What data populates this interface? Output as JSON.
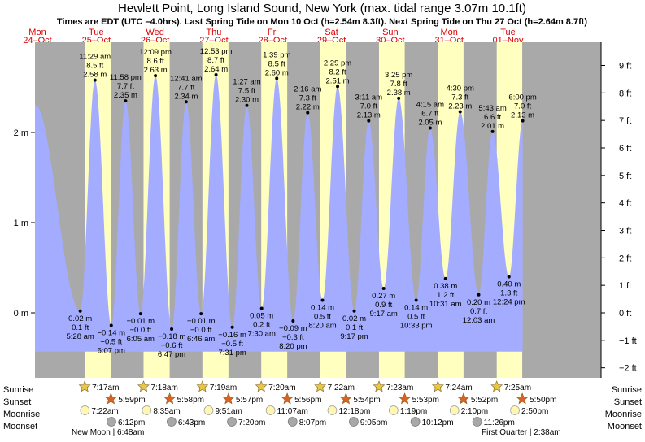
{
  "title": "Hewlett Point, Long Island Sound, New York (max. tidal range 3.07m 10.1ft)",
  "subtitle": "Times are EDT (UTC –4.0hrs). Last Spring Tide on Mon 10 Oct (h=2.54m 8.3ft). Next Spring Tide on Thu 27 Oct (h=2.64m 8.7ft)",
  "colors": {
    "night": "#a9a9a9",
    "day": "#ffffc0",
    "tide": "#a3acff",
    "date_red": "#e00000",
    "sun_star": "#e8c840",
    "sunset_star": "#e06020",
    "moonrise": "#fff6b0",
    "moonset": "#a8a8a8"
  },
  "days": [
    {
      "dow": "Mon",
      "date": "24–Oct"
    },
    {
      "dow": "Tue",
      "date": "25–Oct"
    },
    {
      "dow": "Wed",
      "date": "26–Oct"
    },
    {
      "dow": "Thu",
      "date": "27–Oct"
    },
    {
      "dow": "Fri",
      "date": "28–Oct"
    },
    {
      "dow": "Sat",
      "date": "29–Oct"
    },
    {
      "dow": "Sun",
      "date": "30–Oct"
    },
    {
      "dow": "Mon",
      "date": "31–Oct"
    },
    {
      "dow": "Tue",
      "date": "01–Nov"
    }
  ],
  "chart_data": {
    "type": "area",
    "time_unit": "hours from Mon 24 Oct 00:00 EDT",
    "xlim": [
      11,
      242
    ],
    "ylim_m": [
      -0.7,
      3.0
    ],
    "y_left_ticks": [
      {
        "v": 0,
        "label": "0 m"
      },
      {
        "v": 1,
        "label": "1 m"
      },
      {
        "v": 2,
        "label": "2 m"
      }
    ],
    "y_right_ticks": [
      {
        "ft": -2,
        "label": "−2 ft"
      },
      {
        "ft": -1,
        "label": "−1 ft"
      },
      {
        "ft": 0,
        "label": "0 ft"
      },
      {
        "ft": 1,
        "label": "1 ft"
      },
      {
        "ft": 2,
        "label": "2 ft"
      },
      {
        "ft": 3,
        "label": "3 ft"
      },
      {
        "ft": 4,
        "label": "4 ft"
      },
      {
        "ft": 5,
        "label": "5 ft"
      },
      {
        "ft": 6,
        "label": "6 ft"
      },
      {
        "ft": 7,
        "label": "7 ft"
      },
      {
        "ft": 8,
        "label": "8 ft"
      },
      {
        "ft": 9,
        "label": "9 ft"
      }
    ],
    "start_tide": {
      "t": 11.0,
      "h": 2.31
    },
    "extremes": [
      {
        "t": 29.47,
        "h": 0.02,
        "type": "low",
        "m": "0.02 m",
        "ft": "0.1 ft",
        "time": "5:28 am"
      },
      {
        "t": 35.48,
        "h": 2.58,
        "type": "high",
        "m": "2.58 m",
        "ft": "8.5 ft",
        "time": "11:29 am"
      },
      {
        "t": 42.12,
        "h": -0.14,
        "type": "low",
        "m": "−0.14 m",
        "ft": "−0.5 ft",
        "time": "6:07 pm"
      },
      {
        "t": 47.97,
        "h": 2.35,
        "type": "high",
        "m": "2.35 m",
        "ft": "7.7 ft",
        "time": "11:58 pm"
      },
      {
        "t": 54.08,
        "h": -0.01,
        "type": "low",
        "m": "−0.01 m",
        "ft": "−0.0 ft",
        "time": "6:05 am"
      },
      {
        "t": 60.15,
        "h": 2.63,
        "type": "high",
        "m": "2.63 m",
        "ft": "8.6 ft",
        "time": "12:09 pm"
      },
      {
        "t": 66.78,
        "h": -0.18,
        "type": "low",
        "m": "−0.18 m",
        "ft": "−0.6 ft",
        "time": "6:47 pm"
      },
      {
        "t": 72.68,
        "h": 2.34,
        "type": "high",
        "m": "2.34 m",
        "ft": "7.7 ft",
        "time": "12:41 am"
      },
      {
        "t": 78.77,
        "h": -0.01,
        "type": "low",
        "m": "−0.01 m",
        "ft": "−0.0 ft",
        "time": "6:46 am"
      },
      {
        "t": 84.88,
        "h": 2.64,
        "type": "high",
        "m": "2.64 m",
        "ft": "8.7 ft",
        "time": "12:53 pm"
      },
      {
        "t": 91.52,
        "h": -0.16,
        "type": "low",
        "m": "−0.16 m",
        "ft": "−0.5 ft",
        "time": "7:31 pm"
      },
      {
        "t": 97.45,
        "h": 2.3,
        "type": "high",
        "m": "2.30 m",
        "ft": "7.5 ft",
        "time": "1:27 am"
      },
      {
        "t": 103.5,
        "h": 0.05,
        "type": "low",
        "m": "0.05 m",
        "ft": "0.2 ft",
        "time": "7:30 am"
      },
      {
        "t": 109.65,
        "h": 2.6,
        "type": "high",
        "m": "2.60 m",
        "ft": "8.5 ft",
        "time": "1:39 pm"
      },
      {
        "t": 116.33,
        "h": -0.09,
        "type": "low",
        "m": "−0.09 m",
        "ft": "−0.3 ft",
        "time": "8:20 pm"
      },
      {
        "t": 122.27,
        "h": 2.22,
        "type": "high",
        "m": "2.22 m",
        "ft": "7.3 ft",
        "time": "2:16 am"
      },
      {
        "t": 128.33,
        "h": 0.14,
        "type": "low",
        "m": "0.14 m",
        "ft": "0.5 ft",
        "time": "8:20 am"
      },
      {
        "t": 134.48,
        "h": 2.51,
        "type": "high",
        "m": "2.51 m",
        "ft": "8.2 ft",
        "time": "2:29 pm"
      },
      {
        "t": 141.28,
        "h": 0.02,
        "type": "low",
        "m": "0.02 m",
        "ft": "0.1 ft",
        "time": "9:17 pm"
      },
      {
        "t": 147.18,
        "h": 2.13,
        "type": "high",
        "m": "2.13 m",
        "ft": "7.0 ft",
        "time": "3:11 am"
      },
      {
        "t": 153.28,
        "h": 0.27,
        "type": "low",
        "m": "0.27 m",
        "ft": "0.9 ft",
        "time": "9:17 am"
      },
      {
        "t": 159.42,
        "h": 2.38,
        "type": "high",
        "m": "2.38 m",
        "ft": "7.8 ft",
        "time": "3:25 pm"
      },
      {
        "t": 166.55,
        "h": 0.14,
        "type": "low",
        "m": "0.14 m",
        "ft": "0.5 ft",
        "time": "10:33 pm"
      },
      {
        "t": 172.25,
        "h": 2.05,
        "type": "high",
        "m": "2.05 m",
        "ft": "6.7 ft",
        "time": "4:15 am"
      },
      {
        "t": 178.52,
        "h": 0.38,
        "type": "low",
        "m": "0.38 m",
        "ft": "1.2 ft",
        "time": "10:31 am"
      },
      {
        "t": 184.5,
        "h": 2.23,
        "type": "high",
        "m": "2.23 m",
        "ft": "7.3 ft",
        "time": "4:30 pm"
      },
      {
        "t": 192.05,
        "h": 0.2,
        "type": "low",
        "m": "0.20 m",
        "ft": "0.7 ft",
        "time": "12:03 am"
      },
      {
        "t": 197.72,
        "h": 2.01,
        "type": "high",
        "m": "2.01 m",
        "ft": "6.6 ft",
        "time": "5:43 am"
      },
      {
        "t": 204.4,
        "h": 0.4,
        "type": "low",
        "m": "0.40 m",
        "ft": "1.3 ft",
        "time": "12:24 pm"
      },
      {
        "t": 210.0,
        "h": 2.13,
        "type": "high",
        "m": "2.13 m",
        "ft": "7.0 ft",
        "time": "6:00 pm"
      }
    ],
    "end_tide": {
      "t": 210.0,
      "h": 2.13
    },
    "daylight": [
      {
        "rise": 31.28,
        "set": 41.98
      },
      {
        "rise": 55.3,
        "set": 65.97
      },
      {
        "rise": 79.32,
        "set": 89.95
      },
      {
        "rise": 103.33,
        "set": 113.93
      },
      {
        "rise": 127.37,
        "set": 137.9
      },
      {
        "rise": 151.38,
        "set": 161.88
      },
      {
        "rise": 175.4,
        "set": 185.87
      },
      {
        "rise": 199.42,
        "set": 209.83
      }
    ]
  },
  "legend_labels": {
    "sunrise": "Sunrise",
    "sunset": "Sunset",
    "moonrise": "Moonrise",
    "moonset": "Moonset"
  },
  "sun_moon": {
    "sunrise": [
      {
        "t": 31.28,
        "label": "7:17am"
      },
      {
        "t": 55.3,
        "label": "7:18am"
      },
      {
        "t": 79.32,
        "label": "7:19am"
      },
      {
        "t": 103.33,
        "label": "7:20am"
      },
      {
        "t": 127.37,
        "label": "7:22am"
      },
      {
        "t": 151.38,
        "label": "7:23am"
      },
      {
        "t": 175.4,
        "label": "7:24am"
      },
      {
        "t": 199.42,
        "label": "7:25am"
      }
    ],
    "sunset": [
      {
        "t": 41.98,
        "label": "5:59pm"
      },
      {
        "t": 65.97,
        "label": "5:58pm"
      },
      {
        "t": 89.95,
        "label": "5:57pm"
      },
      {
        "t": 113.93,
        "label": "5:56pm"
      },
      {
        "t": 137.9,
        "label": "5:54pm"
      },
      {
        "t": 161.88,
        "label": "5:53pm"
      },
      {
        "t": 185.87,
        "label": "5:52pm"
      },
      {
        "t": 209.83,
        "label": "5:50pm"
      }
    ],
    "moonrise": [
      {
        "t": 31.37,
        "label": "7:22am"
      },
      {
        "t": 56.58,
        "label": "8:35am"
      },
      {
        "t": 81.85,
        "label": "9:51am"
      },
      {
        "t": 107.12,
        "label": "11:07am"
      },
      {
        "t": 132.3,
        "label": "12:18pm"
      },
      {
        "t": 157.32,
        "label": "1:19pm"
      },
      {
        "t": 182.17,
        "label": "2:10pm"
      },
      {
        "t": 206.83,
        "label": "2:50pm"
      }
    ],
    "moonset": [
      {
        "t": 42.2,
        "label": "6:12pm"
      },
      {
        "t": 66.72,
        "label": "6:43pm"
      },
      {
        "t": 91.33,
        "label": "7:20pm"
      },
      {
        "t": 116.12,
        "label": "8:07pm"
      },
      {
        "t": 141.08,
        "label": "9:05pm"
      },
      {
        "t": 166.2,
        "label": "10:12pm"
      },
      {
        "t": 191.43,
        "label": "11:26pm"
      }
    ]
  },
  "moon_phases": [
    {
      "label": "New Moon | 6:48am"
    },
    {
      "label": "First Quarter | 2:38am"
    }
  ]
}
